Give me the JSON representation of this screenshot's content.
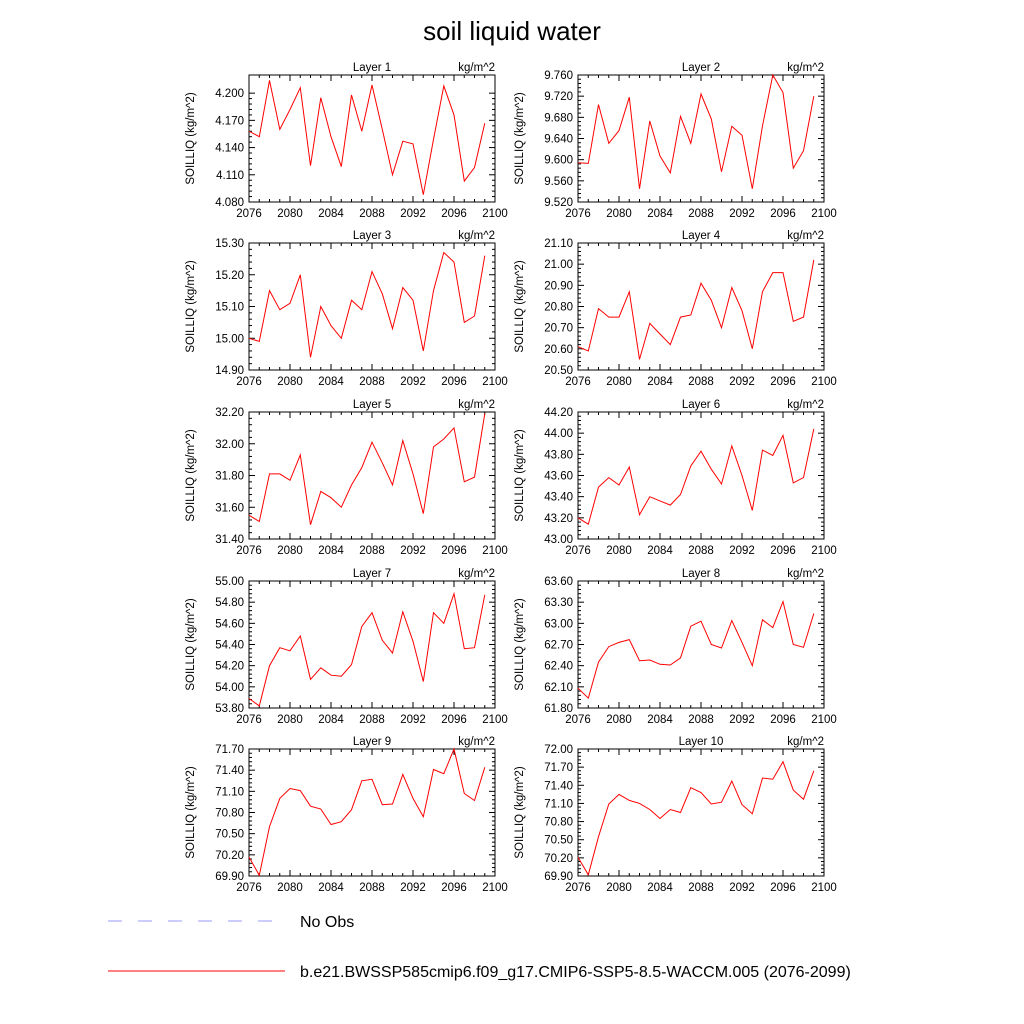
{
  "title": "soil liquid water",
  "colors": {
    "model": "#ff0000",
    "obs": "#9999ff"
  },
  "legend": {
    "obs_label": "No Obs",
    "model_label": "b.e21.BWSSP585cmip6.f09_g17.CMIP6-SSP5-8.5-WACCM.005 (2076-2099)"
  },
  "chart_data": [
    {
      "type": "line",
      "title": "Layer 1",
      "units": "kg/m^2",
      "ylabel": "SOILLIQ  (kg/m^2)",
      "xlim": [
        2076,
        2100
      ],
      "xticks": [
        "2076",
        "2080",
        "2084",
        "2088",
        "2092",
        "2096",
        "2100"
      ],
      "ylim": [
        4.08,
        4.22
      ],
      "yticks": [
        "4.080",
        "4.110",
        "4.140",
        "4.170",
        "4.200"
      ],
      "x": [
        2076,
        2077,
        2078,
        2079,
        2080,
        2081,
        2082,
        2083,
        2084,
        2085,
        2086,
        2087,
        2088,
        2089,
        2090,
        2091,
        2092,
        2093,
        2094,
        2095,
        2096,
        2097,
        2098,
        2099
      ],
      "values": [
        4.158,
        4.152,
        4.214,
        4.16,
        4.182,
        4.206,
        4.12,
        4.195,
        4.152,
        4.119,
        4.198,
        4.158,
        4.209,
        4.16,
        4.11,
        4.147,
        4.144,
        4.088,
        4.149,
        4.208,
        4.176,
        4.103,
        4.118,
        4.167
      ]
    },
    {
      "type": "line",
      "title": "Layer 2",
      "units": "kg/m^2",
      "ylabel": "SOILLIQ  (kg/m^2)",
      "xlim": [
        2076,
        2100
      ],
      "xticks": [
        "2076",
        "2080",
        "2084",
        "2088",
        "2092",
        "2096",
        "2100"
      ],
      "ylim": [
        9.52,
        9.76
      ],
      "yticks": [
        "9.520",
        "9.560",
        "9.600",
        "9.640",
        "9.680",
        "9.720",
        "9.760"
      ],
      "x": [
        2076,
        2077,
        2078,
        2079,
        2080,
        2081,
        2082,
        2083,
        2084,
        2085,
        2086,
        2087,
        2088,
        2089,
        2090,
        2091,
        2092,
        2093,
        2094,
        2095,
        2096,
        2097,
        2098,
        2099
      ],
      "values": [
        9.594,
        9.593,
        9.704,
        9.631,
        9.655,
        9.718,
        9.545,
        9.673,
        9.607,
        9.575,
        9.682,
        9.631,
        9.724,
        9.677,
        9.577,
        9.663,
        9.646,
        9.545,
        9.664,
        9.76,
        9.727,
        9.584,
        9.617,
        9.72
      ]
    },
    {
      "type": "line",
      "title": "Layer 3",
      "units": "kg/m^2",
      "ylabel": "SOILLIQ  (kg/m^2)",
      "xlim": [
        2076,
        2100
      ],
      "xticks": [
        "2076",
        "2080",
        "2084",
        "2088",
        "2092",
        "2096",
        "2100"
      ],
      "ylim": [
        14.9,
        15.3
      ],
      "yticks": [
        "14.90",
        "15.00",
        "15.10",
        "15.20",
        "15.30"
      ],
      "x": [
        2076,
        2077,
        2078,
        2079,
        2080,
        2081,
        2082,
        2083,
        2084,
        2085,
        2086,
        2087,
        2088,
        2089,
        2090,
        2091,
        2092,
        2093,
        2094,
        2095,
        2096,
        2097,
        2098,
        2099
      ],
      "values": [
        15.0,
        14.99,
        15.15,
        15.09,
        15.11,
        15.2,
        14.94,
        15.1,
        15.04,
        15.0,
        15.12,
        15.09,
        15.21,
        15.14,
        15.03,
        15.16,
        15.12,
        14.96,
        15.15,
        15.27,
        15.24,
        15.05,
        15.07,
        15.26
      ]
    },
    {
      "type": "line",
      "title": "Layer 4",
      "units": "kg/m^2",
      "ylabel": "SOILLIQ  (kg/m^2)",
      "xlim": [
        2076,
        2100
      ],
      "xticks": [
        "2076",
        "2080",
        "2084",
        "2088",
        "2092",
        "2096",
        "2100"
      ],
      "ylim": [
        20.5,
        21.1
      ],
      "yticks": [
        "20.50",
        "20.60",
        "20.70",
        "20.80",
        "20.90",
        "21.00",
        "21.10"
      ],
      "x": [
        2076,
        2077,
        2078,
        2079,
        2080,
        2081,
        2082,
        2083,
        2084,
        2085,
        2086,
        2087,
        2088,
        2089,
        2090,
        2091,
        2092,
        2093,
        2094,
        2095,
        2096,
        2097,
        2098,
        2099
      ],
      "values": [
        20.61,
        20.59,
        20.79,
        20.75,
        20.75,
        20.87,
        20.55,
        20.72,
        20.67,
        20.62,
        20.75,
        20.76,
        20.91,
        20.83,
        20.7,
        20.89,
        20.78,
        20.6,
        20.87,
        20.96,
        20.96,
        20.73,
        20.75,
        21.02
      ]
    },
    {
      "type": "line",
      "title": "Layer 5",
      "units": "kg/m^2",
      "ylabel": "SOILLIQ  (kg/m^2)",
      "xlim": [
        2076,
        2100
      ],
      "xticks": [
        "2076",
        "2080",
        "2084",
        "2088",
        "2092",
        "2096",
        "2100"
      ],
      "ylim": [
        31.4,
        32.2
      ],
      "yticks": [
        "31.40",
        "31.60",
        "31.80",
        "32.00",
        "32.20"
      ],
      "x": [
        2076,
        2077,
        2078,
        2079,
        2080,
        2081,
        2082,
        2083,
        2084,
        2085,
        2086,
        2087,
        2088,
        2089,
        2090,
        2091,
        2092,
        2093,
        2094,
        2095,
        2096,
        2097,
        2098,
        2099
      ],
      "values": [
        31.55,
        31.51,
        31.81,
        31.81,
        31.77,
        31.93,
        31.49,
        31.7,
        31.66,
        31.6,
        31.74,
        31.85,
        32.01,
        31.88,
        31.74,
        32.02,
        31.81,
        31.56,
        31.98,
        32.03,
        32.1,
        31.76,
        31.79,
        32.19
      ]
    },
    {
      "type": "line",
      "title": "Layer 6",
      "units": "kg/m^2",
      "ylabel": "SOILLIQ  (kg/m^2)",
      "xlim": [
        2076,
        2100
      ],
      "xticks": [
        "2076",
        "2080",
        "2084",
        "2088",
        "2092",
        "2096",
        "2100"
      ],
      "ylim": [
        43.0,
        44.2
      ],
      "yticks": [
        "43.00",
        "43.20",
        "43.40",
        "43.60",
        "43.80",
        "44.00",
        "44.20"
      ],
      "x": [
        2076,
        2077,
        2078,
        2079,
        2080,
        2081,
        2082,
        2083,
        2084,
        2085,
        2086,
        2087,
        2088,
        2089,
        2090,
        2091,
        2092,
        2093,
        2094,
        2095,
        2096,
        2097,
        2098,
        2099
      ],
      "values": [
        43.2,
        43.14,
        43.49,
        43.58,
        43.51,
        43.68,
        43.23,
        43.4,
        43.36,
        43.32,
        43.42,
        43.69,
        43.83,
        43.66,
        43.52,
        43.88,
        43.6,
        43.27,
        43.84,
        43.79,
        43.98,
        43.53,
        43.58,
        44.04
      ]
    },
    {
      "type": "line",
      "title": "Layer 7",
      "units": "kg/m^2",
      "ylabel": "SOILLIQ  (kg/m^2)",
      "xlim": [
        2076,
        2100
      ],
      "xticks": [
        "2076",
        "2080",
        "2084",
        "2088",
        "2092",
        "2096",
        "2100"
      ],
      "ylim": [
        53.8,
        55.0
      ],
      "yticks": [
        "53.80",
        "54.00",
        "54.20",
        "54.40",
        "54.60",
        "54.80",
        "55.00"
      ],
      "x": [
        2076,
        2077,
        2078,
        2079,
        2080,
        2081,
        2082,
        2083,
        2084,
        2085,
        2086,
        2087,
        2088,
        2089,
        2090,
        2091,
        2092,
        2093,
        2094,
        2095,
        2096,
        2097,
        2098,
        2099
      ],
      "values": [
        53.89,
        53.82,
        54.2,
        54.37,
        54.34,
        54.48,
        54.07,
        54.18,
        54.11,
        54.1,
        54.21,
        54.57,
        54.7,
        54.44,
        54.32,
        54.71,
        54.43,
        54.05,
        54.7,
        54.6,
        54.88,
        54.36,
        54.37,
        54.87
      ]
    },
    {
      "type": "line",
      "title": "Layer 8",
      "units": "kg/m^2",
      "ylabel": "SOILLIQ  (kg/m^2)",
      "xlim": [
        2076,
        2100
      ],
      "xticks": [
        "2076",
        "2080",
        "2084",
        "2088",
        "2092",
        "2096",
        "2100"
      ],
      "ylim": [
        61.8,
        63.6
      ],
      "yticks": [
        "61.80",
        "62.10",
        "62.40",
        "62.70",
        "63.00",
        "63.30",
        "63.60"
      ],
      "x": [
        2076,
        2077,
        2078,
        2079,
        2080,
        2081,
        2082,
        2083,
        2084,
        2085,
        2086,
        2087,
        2088,
        2089,
        2090,
        2091,
        2092,
        2093,
        2094,
        2095,
        2096,
        2097,
        2098,
        2099
      ],
      "values": [
        62.08,
        61.94,
        62.45,
        62.67,
        62.73,
        62.77,
        62.47,
        62.48,
        62.42,
        62.41,
        62.51,
        62.96,
        63.03,
        62.7,
        62.65,
        63.04,
        62.73,
        62.4,
        63.05,
        62.94,
        63.31,
        62.7,
        62.66,
        63.14
      ]
    },
    {
      "type": "line",
      "title": "Layer 9",
      "units": "kg/m^2",
      "ylabel": "SOILLIQ  (kg/m^2)",
      "xlim": [
        2076,
        2100
      ],
      "xticks": [
        "2076",
        "2080",
        "2084",
        "2088",
        "2092",
        "2096",
        "2100"
      ],
      "ylim": [
        69.9,
        71.7
      ],
      "yticks": [
        "69.90",
        "70.20",
        "70.50",
        "70.80",
        "71.10",
        "71.40",
        "71.70"
      ],
      "x": [
        2076,
        2077,
        2078,
        2079,
        2080,
        2081,
        2082,
        2083,
        2084,
        2085,
        2086,
        2087,
        2088,
        2089,
        2090,
        2091,
        2092,
        2093,
        2094,
        2095,
        2096,
        2097,
        2098,
        2099
      ],
      "values": [
        70.17,
        69.91,
        70.6,
        71.0,
        71.14,
        71.11,
        70.89,
        70.85,
        70.63,
        70.67,
        70.84,
        71.25,
        71.27,
        70.91,
        70.92,
        71.34,
        71.0,
        70.74,
        71.41,
        71.35,
        71.7,
        71.07,
        70.97,
        71.44
      ]
    },
    {
      "type": "line",
      "title": "Layer 10",
      "units": "kg/m^2",
      "ylabel": "SOILLIQ  (kg/m^2)",
      "xlim": [
        2076,
        2100
      ],
      "xticks": [
        "2076",
        "2080",
        "2084",
        "2088",
        "2092",
        "2096",
        "2100"
      ],
      "ylim": [
        69.9,
        72.0
      ],
      "yticks": [
        "69.90",
        "70.20",
        "70.50",
        "70.80",
        "71.10",
        "71.40",
        "71.70",
        "72.00"
      ],
      "x": [
        2076,
        2077,
        2078,
        2079,
        2080,
        2081,
        2082,
        2083,
        2084,
        2085,
        2086,
        2087,
        2088,
        2089,
        2090,
        2091,
        2092,
        2093,
        2094,
        2095,
        2096,
        2097,
        2098,
        2099
      ],
      "values": [
        70.21,
        69.92,
        70.55,
        71.09,
        71.25,
        71.15,
        71.1,
        71.0,
        70.85,
        71.0,
        70.95,
        71.36,
        71.28,
        71.09,
        71.12,
        71.47,
        71.08,
        70.93,
        71.52,
        71.5,
        71.79,
        71.32,
        71.17,
        71.64
      ]
    }
  ]
}
